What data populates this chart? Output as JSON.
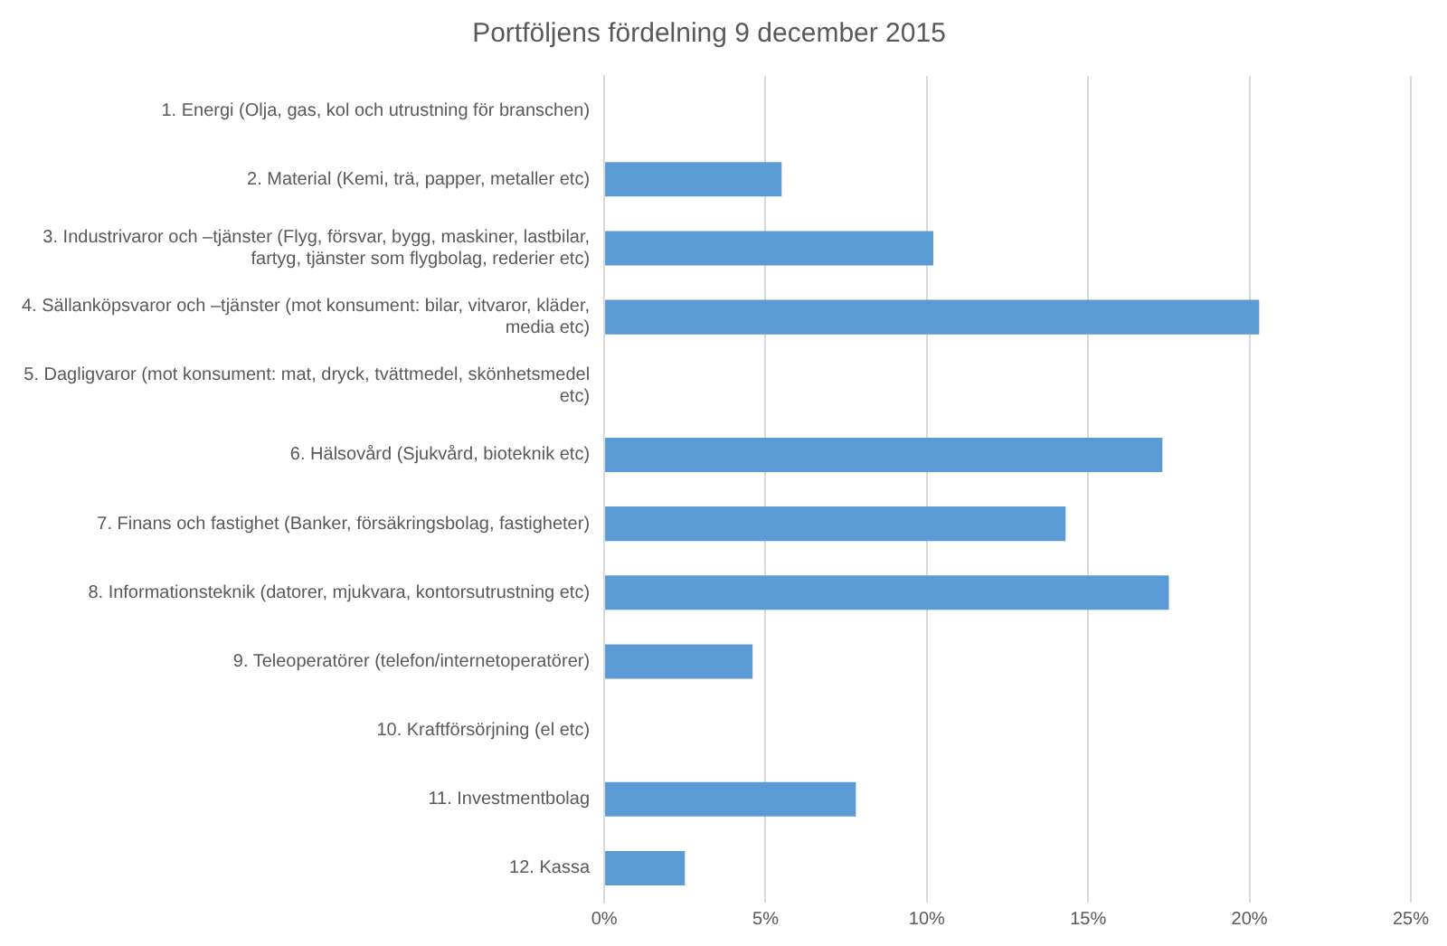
{
  "chart_data": {
    "type": "bar",
    "orientation": "horizontal",
    "title": "Portföljens fördelning 9 december 2015",
    "categories": [
      "1. Energi (Olja, gas, kol och utrustning för branschen)",
      "2. Material (Kemi, trä, papper, metaller etc)",
      "3. Industrivaror och –tjänster (Flyg, försvar, bygg, maskiner, lastbilar, fartyg, tjänster som flygbolag, rederier etc)",
      "4. Sällanköpsvaror och –tjänster (mot konsument: bilar, vitvaror, kläder, media etc)",
      "5. Dagligvaror (mot konsument: mat, dryck, tvättmedel, skönhetsmedel etc)",
      "6. Hälsovård (Sjukvård, bioteknik etc)",
      "7. Finans och fastighet (Banker, försäkringsbolag, fastigheter)",
      "8. Informationsteknik (datorer, mjukvara, kontorsutrustning etc)",
      "9. Teleoperatörer (telefon/internetoperatörer)",
      "10. Kraftförsörjning (el etc)",
      "11. Investmentbolag",
      "12. Kassa"
    ],
    "values": [
      0,
      5.5,
      10.2,
      20.3,
      0,
      17.3,
      14.3,
      17.5,
      4.6,
      0,
      7.8,
      2.5
    ],
    "color": "#5b9bd5",
    "xlim": [
      0,
      25
    ],
    "xticks": [
      {
        "value": 0,
        "label": "0%"
      },
      {
        "value": 5,
        "label": "5%"
      },
      {
        "value": 10,
        "label": "10%"
      },
      {
        "value": 15,
        "label": "15%"
      },
      {
        "value": 20,
        "label": "20%"
      },
      {
        "value": 25,
        "label": "25%"
      }
    ],
    "grid": "x"
  }
}
